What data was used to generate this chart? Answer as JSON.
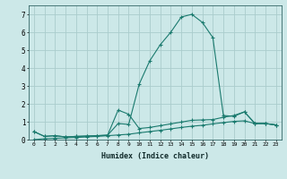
{
  "xlabel": "Humidex (Indice chaleur)",
  "x_values": [
    0,
    1,
    2,
    3,
    4,
    5,
    6,
    7,
    8,
    9,
    10,
    11,
    12,
    13,
    14,
    15,
    16,
    17,
    18,
    19,
    20,
    21,
    22,
    23
  ],
  "series1_y": [
    0.45,
    0.18,
    0.22,
    0.15,
    0.18,
    0.2,
    0.22,
    0.25,
    0.9,
    0.85,
    3.1,
    4.4,
    5.3,
    6.0,
    6.85,
    7.0,
    6.55,
    5.7,
    1.35,
    1.3,
    1.55,
    0.9,
    0.9,
    0.82
  ],
  "series2_y": [
    0.45,
    0.18,
    0.22,
    0.15,
    0.18,
    0.2,
    0.22,
    0.25,
    1.65,
    1.42,
    0.62,
    0.68,
    0.78,
    0.88,
    0.98,
    1.08,
    1.1,
    1.12,
    1.25,
    1.35,
    1.55,
    0.9,
    0.9,
    0.82
  ],
  "series3_y": [
    0.0,
    0.05,
    0.07,
    0.1,
    0.12,
    0.15,
    0.18,
    0.22,
    0.26,
    0.3,
    0.38,
    0.45,
    0.52,
    0.6,
    0.68,
    0.75,
    0.8,
    0.88,
    0.95,
    1.02,
    1.05,
    0.9,
    0.9,
    0.82
  ],
  "line_color": "#1a7a6e",
  "bg_color": "#cce8e8",
  "grid_color": "#aacccc",
  "ylim": [
    0,
    7.5
  ],
  "yticks": [
    0,
    1,
    2,
    3,
    4,
    5,
    6,
    7
  ],
  "fig_bg": "#cce8e8"
}
